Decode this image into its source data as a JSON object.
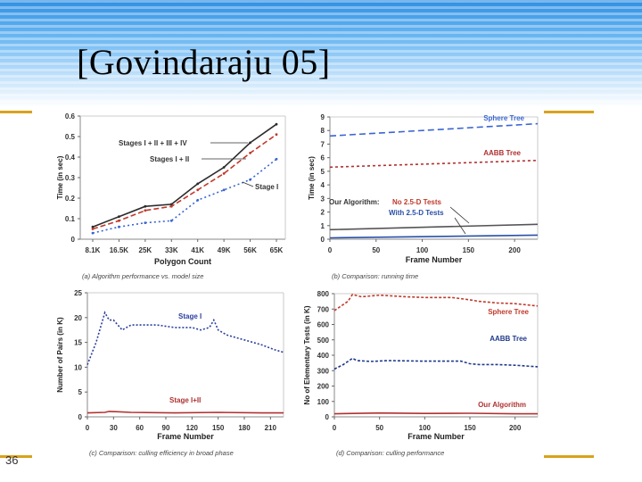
{
  "slide": {
    "title": "[Govindaraju 05]",
    "number": "36"
  },
  "chart_data": [
    {
      "id": "a",
      "type": "line",
      "caption": "(a) Algorithm performance vs. model size",
      "xlabel": "Polygon Count",
      "ylabel": "Time (in sec)",
      "categories": [
        "8.1K",
        "16.5K",
        "25K",
        "33K",
        "41K",
        "49K",
        "56K",
        "65K"
      ],
      "yticks": [
        0,
        0.1,
        0.2,
        0.3,
        0.4,
        0.5,
        0.6
      ],
      "ylim": [
        0,
        0.6
      ],
      "series": [
        {
          "name": "Stages I + II + III + IV",
          "color": "#2b2b2b",
          "dash": "none",
          "values": [
            0.06,
            0.11,
            0.16,
            0.17,
            0.27,
            0.35,
            0.47,
            0.56
          ]
        },
        {
          "name": "Stages I + II",
          "color": "#c0392b",
          "dash": "6,3",
          "values": [
            0.05,
            0.09,
            0.14,
            0.16,
            0.24,
            0.32,
            0.42,
            0.51
          ]
        },
        {
          "name": "Stage I",
          "color": "#3a66d1",
          "dash": "2,3",
          "values": [
            0.03,
            0.06,
            0.08,
            0.09,
            0.19,
            0.24,
            0.29,
            0.39
          ]
        }
      ],
      "labels": [
        {
          "text": "Stages  I + II + III + IV",
          "series": 0
        },
        {
          "text": "Stages I + II",
          "series": 1
        },
        {
          "text": "Stage I",
          "series": 2
        }
      ]
    },
    {
      "id": "b",
      "type": "line",
      "caption": "(b) Comparison: running time",
      "xlabel": "Frame Number",
      "ylabel": "Time (in sec)",
      "xticks": [
        0,
        50,
        100,
        150,
        200
      ],
      "xlim": [
        0,
        225
      ],
      "yticks": [
        0,
        1,
        2,
        3,
        4,
        5,
        6,
        7,
        8,
        9
      ],
      "ylim": [
        0,
        9
      ],
      "series": [
        {
          "name": "Sphere Tree",
          "color": "#3a66d1",
          "dash": "7,4",
          "x": [
            0,
            225
          ],
          "values": [
            7.6,
            8.5
          ]
        },
        {
          "name": "AABB Tree",
          "color": "#b03030",
          "dash": "3,3",
          "x": [
            0,
            225
          ],
          "values": [
            5.3,
            5.8
          ]
        },
        {
          "name": "No 2.5-D Tests",
          "color": "#555555",
          "dash": "none",
          "x": [
            0,
            225
          ],
          "values": [
            0.7,
            1.1
          ]
        },
        {
          "name": "With 2.5-D Tests",
          "color": "#2a4fa8",
          "dash": "none",
          "x": [
            0,
            225
          ],
          "values": [
            0.1,
            0.3
          ]
        }
      ],
      "labels": {
        "sphere": "Sphere Tree",
        "aabb": "AABB Tree",
        "ours": "Our Algorithm:",
        "no25": "No 2.5-D Tests",
        "with25": "With 2.5-D Tests"
      }
    },
    {
      "id": "c",
      "type": "line",
      "caption": "(c) Comparison: culling efficiency in broad phase",
      "xlabel": "Frame Number",
      "ylabel": "Number of Pairs (in K)",
      "xticks": [
        0,
        30,
        60,
        90,
        120,
        150,
        180,
        210
      ],
      "xlim": [
        0,
        225
      ],
      "yticks": [
        0,
        5,
        10,
        15,
        20,
        25
      ],
      "ylim": [
        0,
        25
      ],
      "series": [
        {
          "name": "Stage I",
          "color": "#2a3f9e",
          "dash": "2,2",
          "x": [
            0,
            10,
            20,
            25,
            30,
            40,
            50,
            60,
            80,
            100,
            120,
            130,
            140,
            145,
            150,
            160,
            180,
            200,
            215,
            225
          ],
          "values": [
            10.5,
            15,
            21,
            19.5,
            19.5,
            17.5,
            18.5,
            18.5,
            18.5,
            18,
            18,
            17.5,
            18,
            19.5,
            17.5,
            16.5,
            15.5,
            14.5,
            13.5,
            13
          ]
        },
        {
          "name": "Stage I+II",
          "color": "#b03030",
          "dash": "none",
          "x": [
            0,
            20,
            25,
            50,
            100,
            150,
            200,
            225
          ],
          "values": [
            0.8,
            0.9,
            1.1,
            0.9,
            0.8,
            0.9,
            0.8,
            0.8
          ]
        }
      ],
      "labels": {
        "stage1": "Stage I",
        "stage12": "Stage I+II"
      }
    },
    {
      "id": "d",
      "type": "line",
      "caption": "(d) Comparison: culling performance",
      "xlabel": "Frame Number",
      "ylabel": "No of Elementary Tests (in K)",
      "xticks": [
        0,
        50,
        100,
        150,
        200
      ],
      "xlim": [
        0,
        225
      ],
      "yticks": [
        0,
        100,
        200,
        300,
        400,
        500,
        600,
        700,
        800
      ],
      "ylim": [
        0,
        800
      ],
      "series": [
        {
          "name": "Sphere Tree",
          "color": "#c0392b",
          "dash": "3,2",
          "x": [
            0,
            15,
            20,
            30,
            50,
            80,
            100,
            130,
            150,
            160,
            180,
            200,
            225
          ],
          "values": [
            690,
            750,
            795,
            780,
            790,
            780,
            775,
            775,
            760,
            750,
            740,
            735,
            720
          ]
        },
        {
          "name": "AABB Tree",
          "color": "#1f3a8c",
          "dash": "3,2",
          "x": [
            0,
            10,
            20,
            25,
            40,
            60,
            100,
            140,
            150,
            160,
            180,
            200,
            225
          ],
          "values": [
            310,
            340,
            380,
            365,
            360,
            365,
            362,
            362,
            345,
            340,
            340,
            335,
            325
          ]
        },
        {
          "name": "Our Algorithm",
          "color": "#b03030",
          "dash": "none",
          "x": [
            0,
            20,
            50,
            100,
            150,
            200,
            225
          ],
          "values": [
            20,
            22,
            25,
            22,
            23,
            20,
            20
          ]
        }
      ],
      "labels": {
        "sphere": "Sphere Tree",
        "aabb": "AABB Tree",
        "ours": "Our Algorithm"
      }
    }
  ]
}
